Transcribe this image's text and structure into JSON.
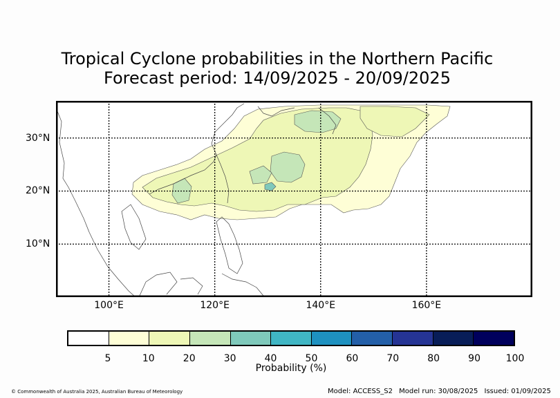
{
  "title": {
    "line1": "Tropical Cyclone probabilities in the Northern Pacific",
    "line2": "Forecast period: 14/09/2025 - 20/09/2025"
  },
  "map": {
    "lon_range": [
      90,
      180
    ],
    "lat_range": [
      0,
      37
    ],
    "lat_ticks": [
      {
        "value": 30,
        "label": "30°N"
      },
      {
        "value": 20,
        "label": "20°N"
      },
      {
        "value": 10,
        "label": "10°N"
      }
    ],
    "lon_ticks": [
      {
        "value": 100,
        "label": "100°E"
      },
      {
        "value": 120,
        "label": "120°E"
      },
      {
        "value": 140,
        "label": "140°E"
      },
      {
        "value": 160,
        "label": "160°E"
      }
    ],
    "gridlines": "dotted"
  },
  "colorbar": {
    "label": "Probability (%)",
    "ticks": [
      "5",
      "10",
      "20",
      "30",
      "40",
      "50",
      "60",
      "70",
      "80",
      "90",
      "100"
    ],
    "colors": [
      "#ffffff",
      "#fefed6",
      "#eef7b6",
      "#c5e6b8",
      "#7fc9bb",
      "#40b6c4",
      "#1e91c0",
      "#235fa8",
      "#253494",
      "#081d58",
      "#00005c"
    ]
  },
  "probability_colors": {
    "5-10": "#fefed6",
    "10-20": "#eef7b6",
    "20-30": "#c5e6b8",
    "30-40": "#7fc9bb"
  },
  "footer": {
    "copyright": "© Commonwealth of Australia 2025, Australian Bureau of Meteorology",
    "model": "Model: ACCESS_S2",
    "model_run": "Model run: 30/08/2025",
    "issued": "Issued: 01/09/2025"
  }
}
